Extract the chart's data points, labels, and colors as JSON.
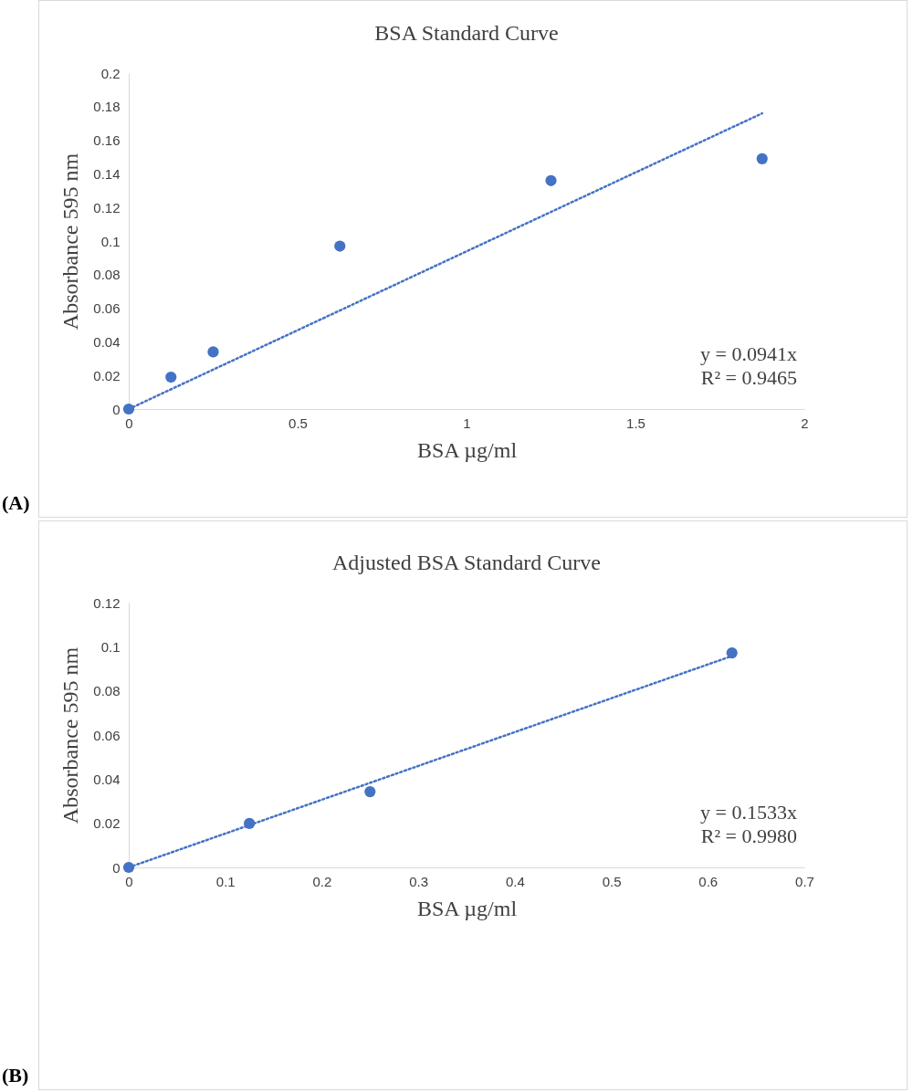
{
  "chart_data": [
    {
      "type": "scatter",
      "title": "BSA Standard Curve",
      "xlabel": "BSA µg/ml",
      "ylabel": "Absorbance 595 nm",
      "xlim": [
        0,
        2
      ],
      "xticks": [
        0,
        0.5,
        1,
        1.5,
        2
      ],
      "ylim": [
        0,
        0.2
      ],
      "yticks": [
        0,
        0.02,
        0.04,
        0.06,
        0.08,
        0.1,
        0.12,
        0.14,
        0.16,
        0.18,
        0.2
      ],
      "grid": false,
      "annotations": [
        "(A)",
        "y = 0.0941x",
        "R² = 0.9465"
      ],
      "series": [
        {
          "type": "scatter",
          "color": "#4472c4",
          "marker": "circle",
          "x": [
            0,
            0.125,
            0.25,
            0.625,
            1.25,
            1.875
          ],
          "values": [
            0,
            0.019,
            0.034,
            0.097,
            0.136,
            0.149
          ]
        },
        {
          "type": "line",
          "color": "#4472c4",
          "line_style": "dotted",
          "x": [
            0,
            1.875
          ],
          "values": [
            0,
            0.176
          ]
        }
      ]
    },
    {
      "type": "scatter",
      "title": "Adjusted BSA Standard Curve",
      "xlabel": "BSA µg/ml",
      "ylabel": "Absorbance 595 nm",
      "xlim": [
        0,
        0.7
      ],
      "xticks": [
        0,
        0.1,
        0.2,
        0.3,
        0.4,
        0.5,
        0.6,
        0.7
      ],
      "ylim": [
        0,
        0.12
      ],
      "yticks": [
        0,
        0.02,
        0.04,
        0.06,
        0.08,
        0.1,
        0.12
      ],
      "grid": false,
      "annotations": [
        "(B)",
        "y = 0.1533x",
        "R² = 0.9980"
      ],
      "series": [
        {
          "type": "scatter",
          "color": "#4472c4",
          "marker": "circle",
          "x": [
            0,
            0.125,
            0.25,
            0.625
          ],
          "values": [
            0,
            0.0199,
            0.0343,
            0.0972
          ]
        },
        {
          "type": "line",
          "color": "#4472c4",
          "line_style": "dotted",
          "x": [
            0,
            0.625
          ],
          "values": [
            0,
            0.0958
          ]
        }
      ]
    }
  ]
}
